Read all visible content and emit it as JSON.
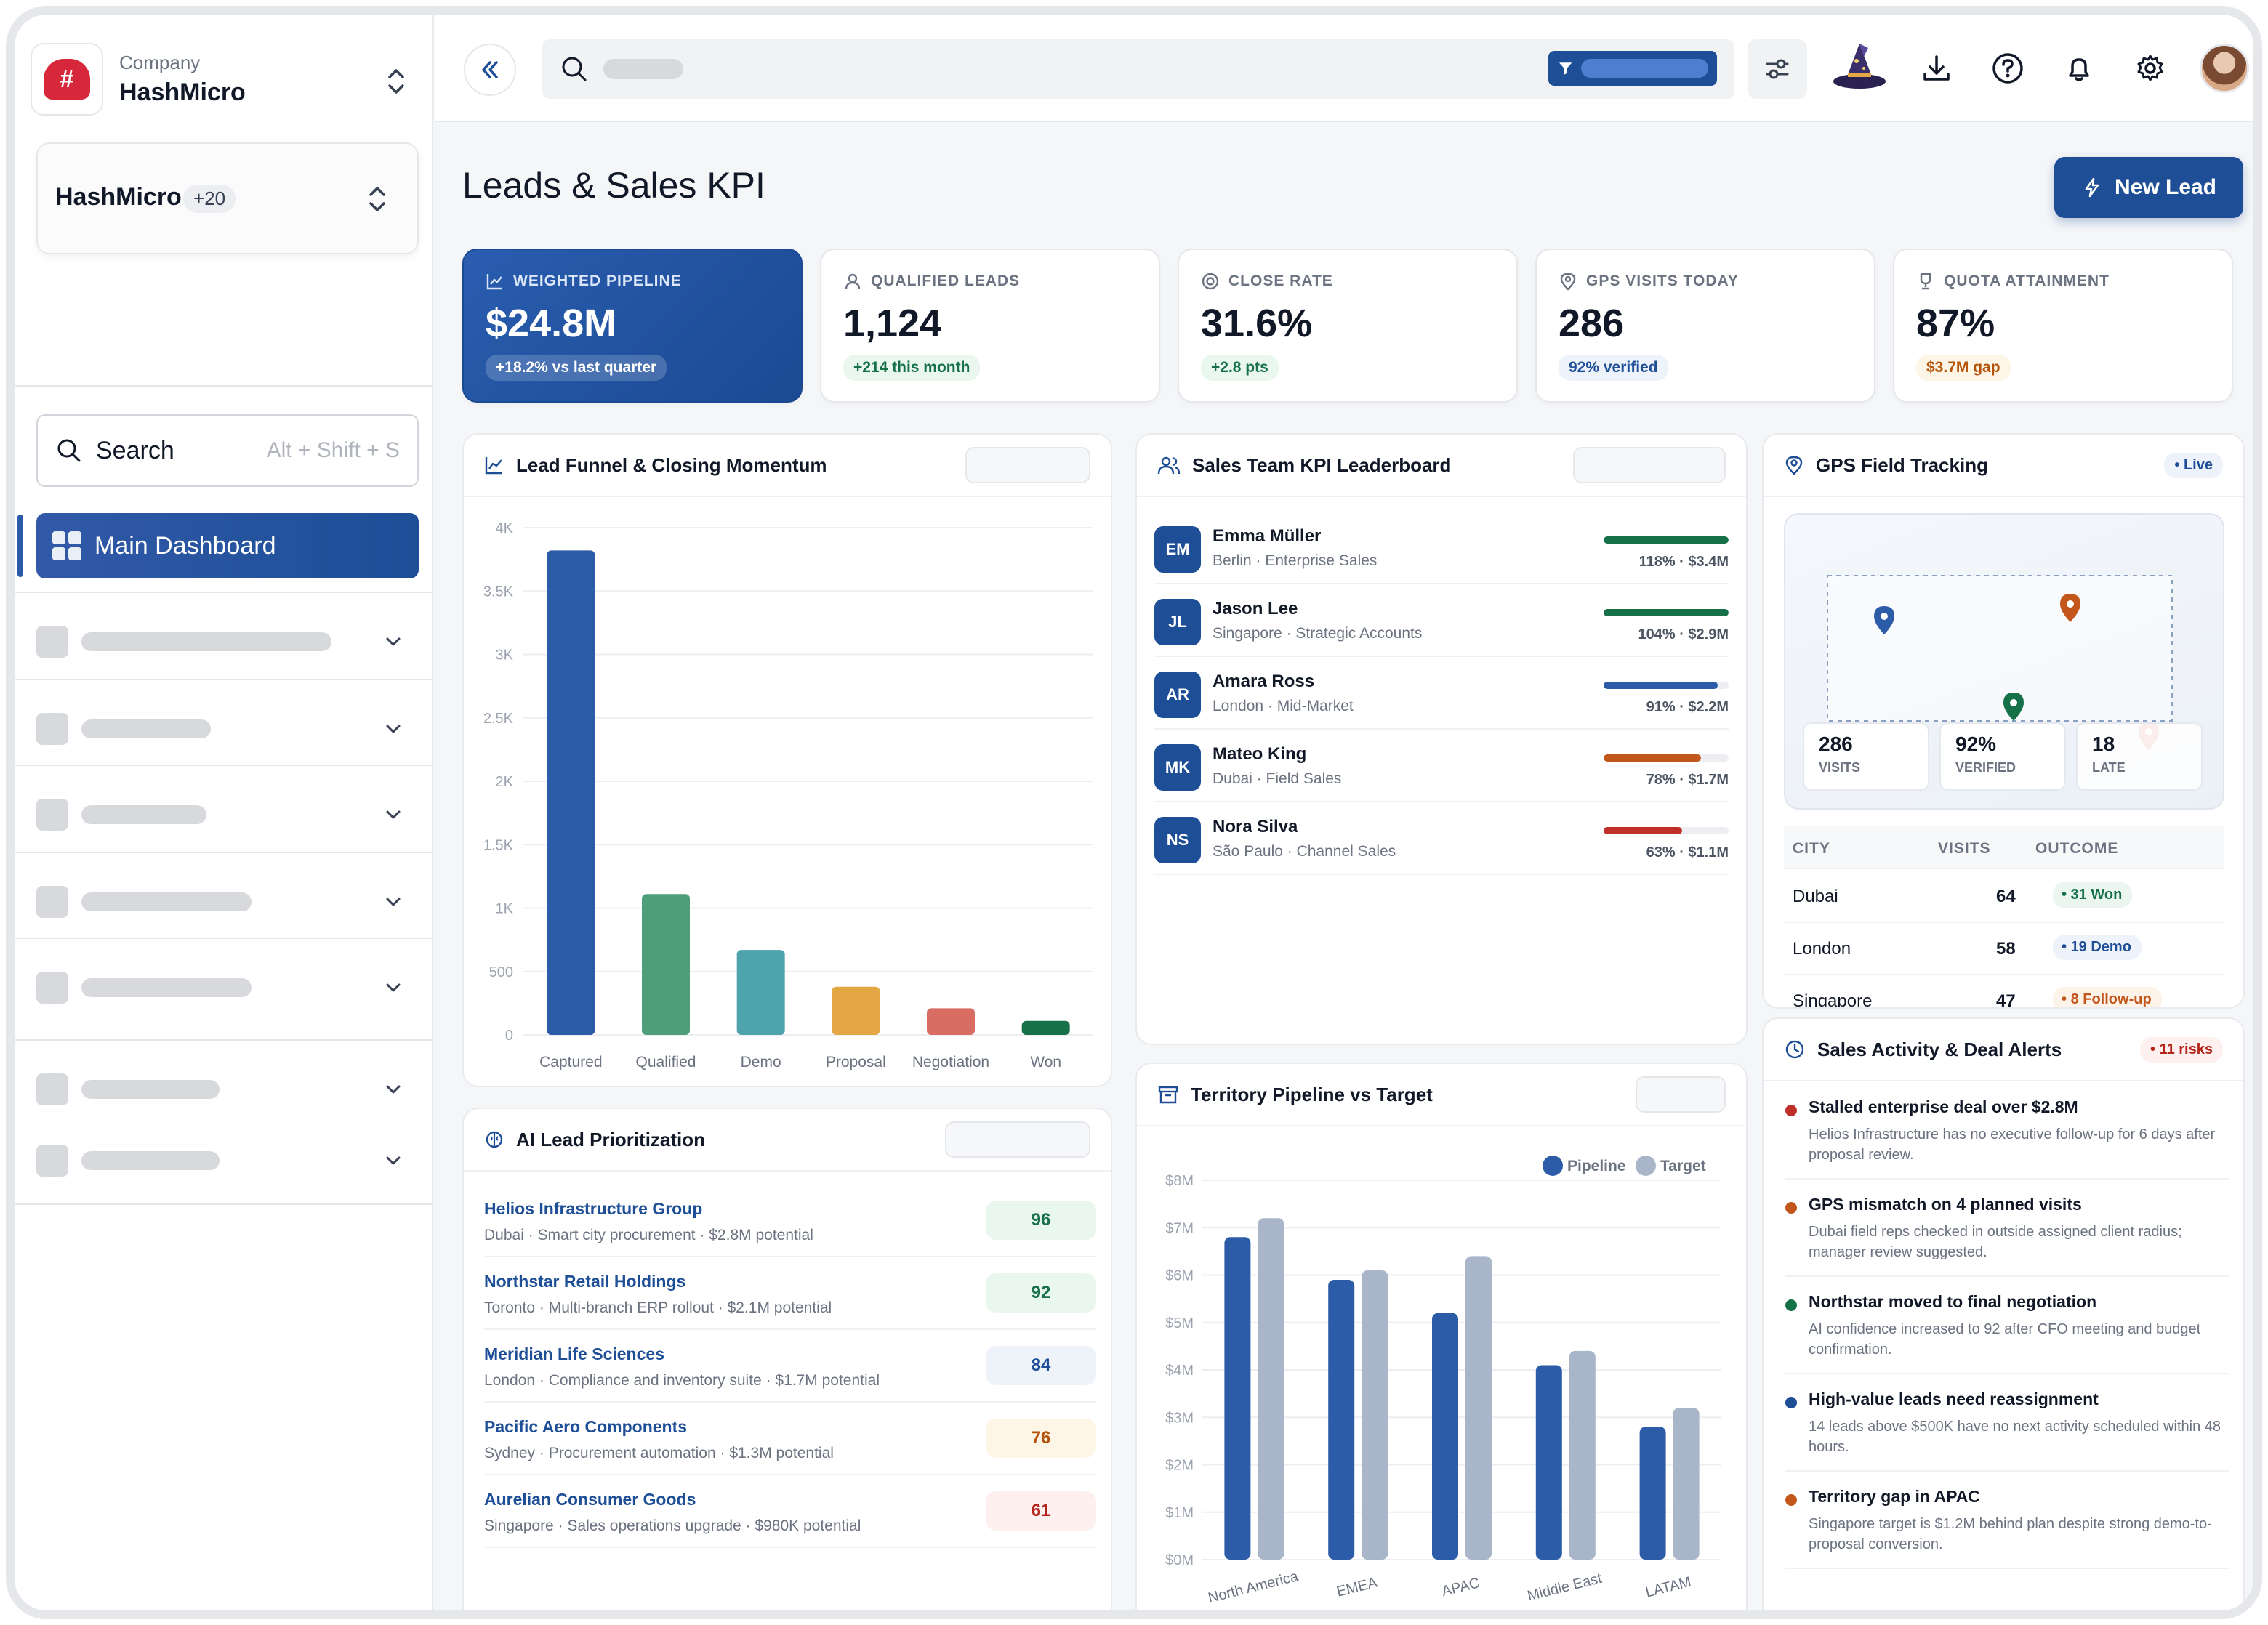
{
  "sidebar": {
    "company_label": "Company",
    "company_name": "HashMicro",
    "logo_text": "HASHMICRO",
    "workspace_name": "HashMicro",
    "workspace_count": "+20",
    "search_label": "Search",
    "search_hint": "Alt + Shift + S",
    "main_dashboard": "Main Dashboard"
  },
  "header": {
    "page_title": "Leads & Sales KPI",
    "new_lead": "New Lead"
  },
  "kpis": [
    {
      "label": "WEIGHTED PIPELINE",
      "value": "$24.8M",
      "badge": "+18.2% vs last quarter",
      "icon": "trend-icon"
    },
    {
      "label": "QUALIFIED LEADS",
      "value": "1,124",
      "badge": "+214 this month",
      "icon": "user-icon"
    },
    {
      "label": "CLOSE RATE",
      "value": "31.6%",
      "badge": "+2.8 pts",
      "icon": "target-icon"
    },
    {
      "label": "GPS VISITS TODAY",
      "value": "286",
      "badge": "92% verified",
      "icon": "pin-icon"
    },
    {
      "label": "QUOTA ATTAINMENT",
      "value": "87%",
      "badge": "$3.7M gap",
      "icon": "trophy-icon"
    }
  ],
  "funnel": {
    "title": "Lead Funnel & Closing Momentum",
    "colors": [
      "#2c5ca8",
      "#4f9e7a",
      "#4ea3ac",
      "#e3a843",
      "#d96c63",
      "#167048"
    ]
  },
  "leaderboard": {
    "title": "Sales Team KPI Leaderboard",
    "rows": [
      {
        "initials": "EM",
        "name": "Emma Müller",
        "sub": "Berlin · Enterprise Sales",
        "value": "118% · $3.4M",
        "pct": 1.0,
        "color": "#167048"
      },
      {
        "initials": "JL",
        "name": "Jason Lee",
        "sub": "Singapore · Strategic Accounts",
        "value": "104% · $2.9M",
        "pct": 1.0,
        "color": "#167048"
      },
      {
        "initials": "AR",
        "name": "Amara Ross",
        "sub": "London · Mid-Market",
        "value": "91% · $2.2M",
        "pct": 0.91,
        "color": "#2c5ca8"
      },
      {
        "initials": "MK",
        "name": "Mateo King",
        "sub": "Dubai · Field Sales",
        "value": "78% · $1.7M",
        "pct": 0.78,
        "color": "#c2561b"
      },
      {
        "initials": "NS",
        "name": "Nora Silva",
        "sub": "São Paulo · Channel Sales",
        "value": "63% · $1.1M",
        "pct": 0.63,
        "color": "#c0302a"
      }
    ]
  },
  "gps": {
    "title": "GPS Field Tracking",
    "live": "Live",
    "stats": [
      {
        "value": "286",
        "label": "VISITS"
      },
      {
        "value": "92%",
        "label": "VERIFIED"
      },
      {
        "value": "18",
        "label": "LATE"
      }
    ],
    "columns": [
      "CITY",
      "VISITS",
      "OUTCOME"
    ],
    "rows": [
      {
        "city": "Dubai",
        "visits": "64",
        "outcome": "31 Won",
        "color": "#167048",
        "bg": "#eaf6ef"
      },
      {
        "city": "London",
        "visits": "58",
        "outcome": "19 Demo",
        "color": "#1d4e96",
        "bg": "#eef3fb"
      },
      {
        "city": "Singapore",
        "visits": "47",
        "outcome": "8 Follow-up",
        "color": "#c2561b",
        "bg": "#fdf3e8"
      }
    ]
  },
  "ai": {
    "title": "AI Lead Prioritization",
    "rows": [
      {
        "name": "Helios Infrastructure Group",
        "sub": "Dubai · Smart city procurement · $2.8M potential",
        "score": "96",
        "color": "#167048",
        "bg": "#eaf7ef"
      },
      {
        "name": "Northstar Retail Holdings",
        "sub": "Toronto · Multi-branch ERP rollout · $2.1M potential",
        "score": "92",
        "color": "#167048",
        "bg": "#eaf7ef"
      },
      {
        "name": "Meridian Life Sciences",
        "sub": "London · Compliance and inventory suite · $1.7M potential",
        "score": "84",
        "color": "#1d4e96",
        "bg": "#eef3fa"
      },
      {
        "name": "Pacific Aero Components",
        "sub": "Sydney · Procurement automation · $1.3M potential",
        "score": "76",
        "color": "#b45309",
        "bg": "#fdf6e7"
      },
      {
        "name": "Aurelian Consumer Goods",
        "sub": "Singapore · Sales operations upgrade · $980K potential",
        "score": "61",
        "color": "#b42318",
        "bg": "#fdf0ef"
      }
    ]
  },
  "territory": {
    "title": "Territory Pipeline vs Target",
    "colors": {
      "pipeline": "#2c5ca8",
      "target": "#a9b6c9"
    }
  },
  "alerts": {
    "title": "Sales Activity & Deal Alerts",
    "risks": "11 risks",
    "items": [
      {
        "title": "Stalled enterprise deal over $2.8M",
        "desc": "Helios Infrastructure has no executive follow-up for 6 days after proposal review.",
        "color": "#c0302a"
      },
      {
        "title": "GPS mismatch on 4 planned visits",
        "desc": "Dubai field reps checked in outside assigned client radius; manager review suggested.",
        "color": "#c2561b"
      },
      {
        "title": "Northstar moved to final negotiation",
        "desc": "AI confidence increased to 92 after CFO meeting and budget confirmation.",
        "color": "#167048"
      },
      {
        "title": "High-value leads need reassignment",
        "desc": "14 leads above $500K have no next activity scheduled within 48 hours.",
        "color": "#1d4e96"
      },
      {
        "title": "Territory gap in APAC",
        "desc": "Singapore target is $1.2M behind plan despite strong demo-to-proposal conversion.",
        "color": "#c2561b"
      }
    ]
  },
  "chart_data": [
    {
      "type": "bar",
      "title": "Lead Funnel & Closing Momentum",
      "categories": [
        "Captured",
        "Qualified",
        "Demo",
        "Proposal",
        "Negotiation",
        "Won"
      ],
      "values": [
        3820,
        1110,
        670,
        380,
        210,
        110
      ],
      "yticks": [
        "0",
        "500",
        "1K",
        "1.5K",
        "2K",
        "2.5K",
        "3K",
        "3.5K",
        "4K"
      ],
      "ylim": [
        0,
        4000
      ],
      "grid": true
    },
    {
      "type": "bar",
      "title": "Territory Pipeline vs Target",
      "categories": [
        "North America",
        "EMEA",
        "APAC",
        "Middle East",
        "LATAM"
      ],
      "series": [
        {
          "name": "Pipeline",
          "values": [
            6.8,
            5.9,
            5.2,
            4.1,
            2.8
          ]
        },
        {
          "name": "Target",
          "values": [
            7.2,
            6.1,
            6.4,
            4.4,
            3.2
          ]
        }
      ],
      "yticks": [
        "$0M",
        "$1M",
        "$2M",
        "$3M",
        "$4M",
        "$5M",
        "$6M",
        "$7M",
        "$8M"
      ],
      "ylim": [
        0,
        8
      ],
      "legend": "top-right",
      "grid": true
    }
  ]
}
